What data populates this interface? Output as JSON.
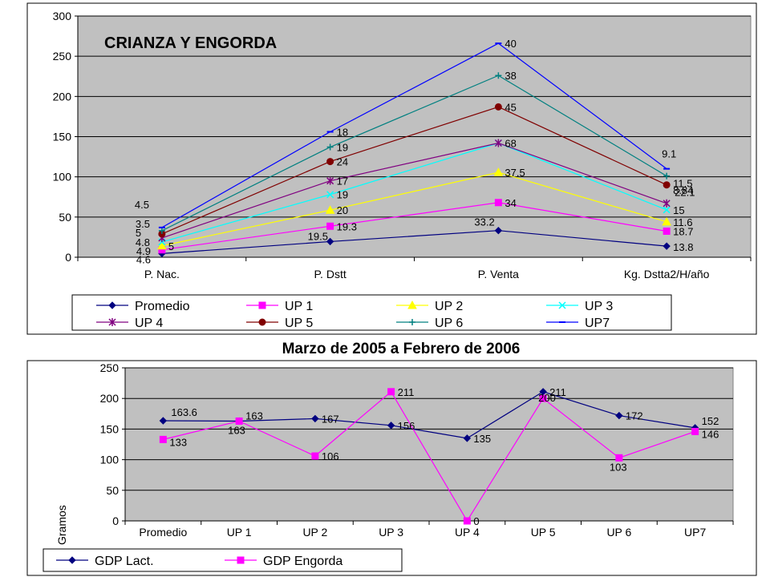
{
  "between_title": "Marzo de 2005 a Febrero de 2006",
  "chart_data": [
    {
      "type": "line",
      "title": "CRIANZA Y ENGORDA",
      "categories": [
        "P. Nac.",
        "P. Dstt",
        "P. Venta",
        "Kg. Dstta2/H/año"
      ],
      "ylim": [
        0,
        300
      ],
      "yticks": [
        0,
        50,
        100,
        150,
        200,
        250,
        300
      ],
      "grid": true,
      "legend_position": "bottom",
      "series": [
        {
          "name": "Promedio",
          "color": "#000080",
          "marker": "diamond",
          "values": [
            4.6,
            19.5,
            33.2,
            13.8
          ],
          "labels": [
            "4.6",
            "19.5",
            "33.2",
            "13.8"
          ]
        },
        {
          "name": "UP 1",
          "color": "#ff00ff",
          "marker": "square",
          "values": [
            9.2,
            38.6,
            68,
            32.4
          ],
          "labels": [
            "4.9",
            "19.3",
            "34",
            "18.7"
          ]
        },
        {
          "name": "UP 2",
          "color": "#ffff00",
          "marker": "triangle",
          "values": [
            14.2,
            58.6,
            105.5,
            44
          ],
          "labels": [
            "5",
            "20",
            "37.5",
            "11.6"
          ]
        },
        {
          "name": "UP 3",
          "color": "#00ffff",
          "marker": "x",
          "values": [
            19,
            78,
            142,
            59
          ],
          "labels": [
            "4.8",
            "19",
            "",
            "15"
          ]
        },
        {
          "name": "UP 4",
          "color": "#800080",
          "marker": "asterisk",
          "values": [
            24,
            95,
            142,
            67
          ],
          "labels": [
            "5",
            "17",
            "68",
            "8.84"
          ]
        },
        {
          "name": "UP 5",
          "color": "#800000",
          "marker": "circle",
          "values": [
            29,
            119,
            187,
            90
          ],
          "labels": [
            "3.5",
            "24",
            "45",
            "22.1"
          ]
        },
        {
          "name": "UP 6",
          "color": "#008080",
          "marker": "plus",
          "values": [
            33,
            137,
            226,
            101
          ],
          "labels": [
            "",
            "19",
            "38",
            "11.5"
          ]
        },
        {
          "name": "UP7",
          "color": "#0000ff",
          "marker": "dash",
          "values": [
            37,
            156,
            266,
            110
          ],
          "labels": [
            "4.5",
            "18",
            "40",
            "9.1"
          ]
        }
      ]
    },
    {
      "type": "line",
      "title": "",
      "ylabel": "Gramos",
      "categories": [
        "Promedio",
        "UP 1",
        "UP 2",
        "UP 3",
        "UP 4",
        "UP 5",
        "UP 6",
        "UP7"
      ],
      "ylim": [
        0,
        250
      ],
      "yticks": [
        0,
        50,
        100,
        150,
        200,
        250
      ],
      "grid": true,
      "legend_position": "bottom",
      "series": [
        {
          "name": "GDP Lact.",
          "color": "#000080",
          "marker": "diamond",
          "values": [
            163.6,
            163,
            167,
            156,
            135,
            211,
            172,
            152
          ],
          "labels": [
            "163.6",
            "163",
            "167",
            "156",
            "135",
            "211",
            "172",
            "152"
          ]
        },
        {
          "name": "GDP Engorda",
          "color": "#ff00ff",
          "marker": "square",
          "values": [
            133,
            163,
            106,
            211,
            0,
            200,
            103,
            146
          ],
          "labels": [
            "133",
            "163",
            "106",
            "211",
            "0",
            "200",
            "103",
            "146"
          ]
        }
      ]
    }
  ]
}
